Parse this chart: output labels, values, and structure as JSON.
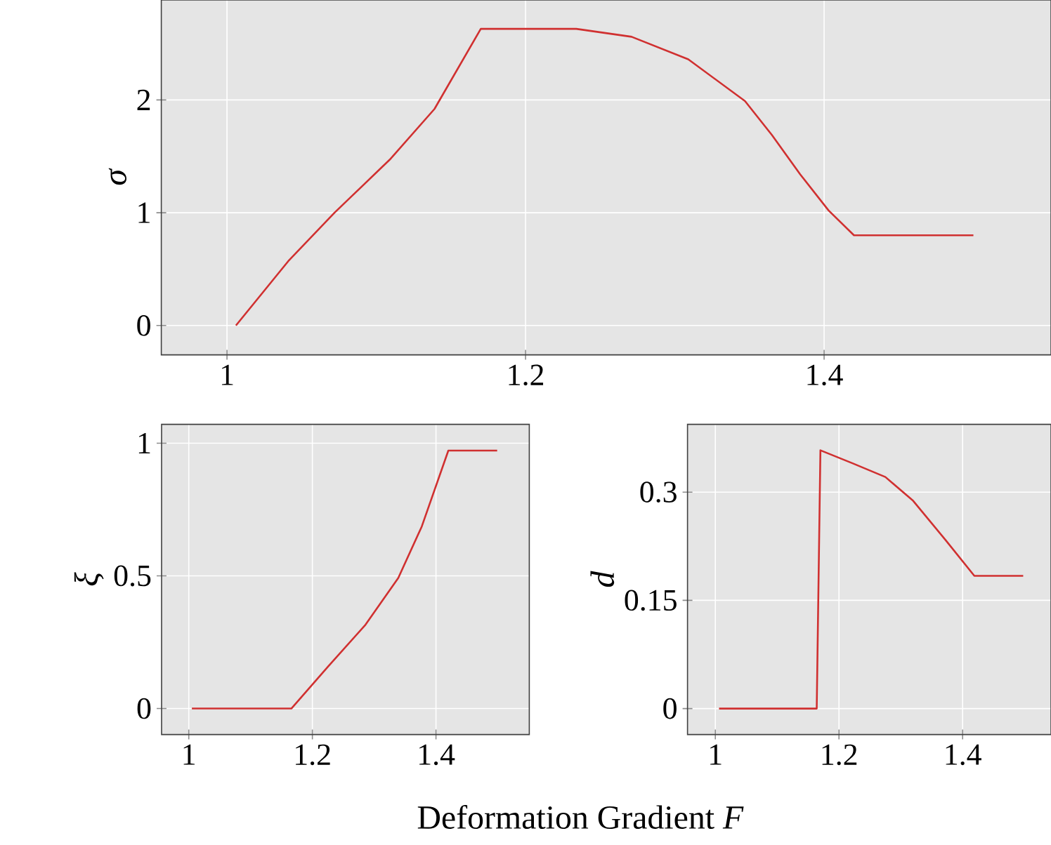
{
  "chart_data": [
    {
      "type": "line",
      "ylabel": "σ",
      "color": "#d03030",
      "grid": true,
      "xlim": [
        0.956,
        1.552
      ],
      "ylim": [
        -0.26,
        2.886
      ],
      "xticks": [
        1,
        1.2,
        1.4
      ],
      "yticks": [
        0,
        1,
        2
      ],
      "x": [
        1.006,
        1.041,
        1.072,
        1.109,
        1.139,
        1.17,
        1.234,
        1.271,
        1.309,
        1.347,
        1.365,
        1.384,
        1.403,
        1.42,
        1.5
      ],
      "values": [
        0,
        0.57,
        1.0,
        1.47,
        1.92,
        2.63,
        2.63,
        2.56,
        2.36,
        1.99,
        1.69,
        1.34,
        1.02,
        0.8,
        0.8
      ]
    },
    {
      "type": "line",
      "ylabel": "ξ",
      "xlabel": "Deformation Gradient *F*",
      "color": "#d03030",
      "grid": true,
      "xlim": [
        0.956,
        1.551
      ],
      "ylim": [
        -0.098,
        1.071
      ],
      "xticks": [
        1,
        1.2,
        1.4
      ],
      "yticks": [
        0,
        0.5,
        1
      ],
      "x": [
        1.005,
        1.166,
        1.225,
        1.286,
        1.339,
        1.377,
        1.42,
        1.499
      ],
      "values": [
        0,
        0,
        0.157,
        0.316,
        0.492,
        0.686,
        0.972,
        0.972
      ]
    },
    {
      "type": "line",
      "ylabel": "d",
      "color": "#d03030",
      "grid": true,
      "xlim": [
        0.955,
        1.543
      ],
      "ylim": [
        -0.036,
        0.394
      ],
      "xticks": [
        1,
        1.2,
        1.4
      ],
      "yticks": [
        0,
        0.15,
        0.3
      ],
      "x": [
        1.006,
        1.164,
        1.17,
        1.222,
        1.275,
        1.32,
        1.373,
        1.419,
        1.498
      ],
      "values": [
        0,
        0,
        0.358,
        0.34,
        0.321,
        0.288,
        0.233,
        0.184,
        0.184
      ]
    }
  ]
}
